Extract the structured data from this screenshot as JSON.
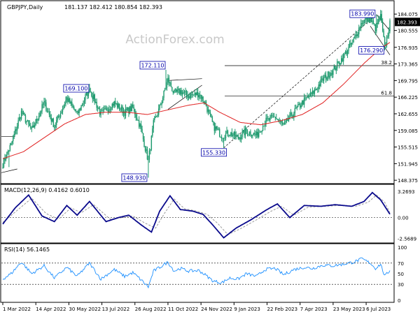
{
  "chart_data": [
    {
      "type": "candlestick",
      "symbol_label": "GBPJPY,Daily",
      "ohlc_label": "181.137 182.412 180.854 182.393",
      "watermark": "ActionForex.com",
      "ylim": [
        148.4,
        185.9
      ],
      "y_ticks": [
        "184.075",
        "180.555",
        "176.935",
        "173.365",
        "169.795",
        "166.225",
        "162.655",
        "159.085",
        "155.515",
        "151.945",
        "148.375"
      ],
      "y_tick_values": [
        184.075,
        180.555,
        176.935,
        173.365,
        169.795,
        166.225,
        162.655,
        159.085,
        155.515,
        151.945,
        148.375
      ],
      "current_price": "182.393",
      "current_price_value": 182.393,
      "x_ticks": [
        "1 Mar 2022",
        "14 Apr 2022",
        "30 May 2022",
        "13 Jul 2022",
        "26 Aug 2022",
        "11 Oct 2022",
        "24 Nov 2022",
        "9 Jan 2023",
        "22 Feb 2023",
        "7 Apr 2023",
        "23 May 2023",
        "6 Jul 2023"
      ],
      "x_tick_index": [
        0,
        32,
        64,
        96,
        128,
        160,
        192,
        224,
        256,
        288,
        320,
        352
      ],
      "anchors": [
        {
          "i": 0,
          "p": 152.0
        },
        {
          "i": 8,
          "p": 156.0
        },
        {
          "i": 18,
          "p": 163.0
        },
        {
          "i": 28,
          "p": 159.0
        },
        {
          "i": 40,
          "p": 165.0
        },
        {
          "i": 50,
          "p": 160.0
        },
        {
          "i": 62,
          "p": 166.0
        },
        {
          "i": 72,
          "p": 162.5
        },
        {
          "i": 84,
          "p": 168.0
        },
        {
          "i": 95,
          "p": 162.5
        },
        {
          "i": 108,
          "p": 165.0
        },
        {
          "i": 118,
          "p": 163.0
        },
        {
          "i": 126,
          "p": 164.0
        },
        {
          "i": 133,
          "p": 160.0
        },
        {
          "i": 141,
          "p": 152.5
        },
        {
          "i": 146,
          "p": 160.5
        },
        {
          "i": 152,
          "p": 164.0
        },
        {
          "i": 160,
          "p": 170.0
        },
        {
          "i": 166,
          "p": 167.0
        },
        {
          "i": 172,
          "p": 167.5
        },
        {
          "i": 180,
          "p": 166.5
        },
        {
          "i": 190,
          "p": 167.0
        },
        {
          "i": 196,
          "p": 165.0
        },
        {
          "i": 204,
          "p": 160.0
        },
        {
          "i": 212,
          "p": 158.0
        },
        {
          "i": 220,
          "p": 158.5
        },
        {
          "i": 228,
          "p": 157.5
        },
        {
          "i": 236,
          "p": 159.0
        },
        {
          "i": 246,
          "p": 158.0
        },
        {
          "i": 254,
          "p": 161.0
        },
        {
          "i": 264,
          "p": 162.0
        },
        {
          "i": 272,
          "p": 160.0
        },
        {
          "i": 282,
          "p": 163.0
        },
        {
          "i": 292,
          "p": 165.5
        },
        {
          "i": 300,
          "p": 167.0
        },
        {
          "i": 310,
          "p": 170.0
        },
        {
          "i": 320,
          "p": 172.0
        },
        {
          "i": 330,
          "p": 175.0
        },
        {
          "i": 340,
          "p": 178.5
        },
        {
          "i": 348,
          "p": 182.5
        },
        {
          "i": 356,
          "p": 183.0
        },
        {
          "i": 361,
          "p": 181.0
        },
        {
          "i": 366,
          "p": 183.5
        },
        {
          "i": 370,
          "p": 176.8
        },
        {
          "i": 375,
          "p": 182.0
        }
      ],
      "extremes": [
        {
          "i": 6,
          "p": 151.2
        },
        {
          "i": 84,
          "p": 169.1
        },
        {
          "i": 141,
          "p": 148.93
        },
        {
          "i": 158,
          "p": 172.11
        },
        {
          "i": 214,
          "p": 155.33
        },
        {
          "i": 362,
          "p": 183.99
        },
        {
          "i": 370,
          "p": 176.29
        }
      ],
      "ma_anchors": [
        {
          "i": 0,
          "p": 153.0
        },
        {
          "i": 20,
          "p": 154.5
        },
        {
          "i": 40,
          "p": 157.5
        },
        {
          "i": 60,
          "p": 160.5
        },
        {
          "i": 80,
          "p": 162.5
        },
        {
          "i": 100,
          "p": 163.0
        },
        {
          "i": 120,
          "p": 163.0
        },
        {
          "i": 140,
          "p": 162.5
        },
        {
          "i": 160,
          "p": 163.5
        },
        {
          "i": 180,
          "p": 164.5
        },
        {
          "i": 195,
          "p": 165.0
        },
        {
          "i": 210,
          "p": 163.0
        },
        {
          "i": 230,
          "p": 160.8
        },
        {
          "i": 250,
          "p": 160.3
        },
        {
          "i": 270,
          "p": 161.2
        },
        {
          "i": 290,
          "p": 162.5
        },
        {
          "i": 310,
          "p": 165.0
        },
        {
          "i": 330,
          "p": 169.0
        },
        {
          "i": 350,
          "p": 173.5
        },
        {
          "i": 365,
          "p": 176.5
        },
        {
          "i": 375,
          "p": 178.0
        }
      ],
      "price_labels": [
        {
          "text": "183.990",
          "i": 362,
          "p": 183.99
        },
        {
          "text": "176.290",
          "i": 370,
          "p": 176.29
        },
        {
          "text": "172.110",
          "i": 158,
          "p": 172.11
        },
        {
          "text": "169.100",
          "i": 84,
          "p": 169.1
        },
        {
          "text": "155.330",
          "i": 214,
          "p": 155.33
        },
        {
          "text": "148.930",
          "i": 141,
          "p": 148.93
        }
      ],
      "fibonacci": [
        {
          "label": "38.2",
          "price": 173.0,
          "from_i": 215
        },
        {
          "label": "61.8",
          "price": 166.5,
          "from_i": 215
        }
      ]
    },
    {
      "type": "line",
      "title": "MACD(12,26,9) 0.4162 0.6010",
      "ylim": [
        -2.8,
        3.6
      ],
      "y_ticks": [
        "3.2693",
        "0.00",
        "-2.5689"
      ],
      "y_tick_values": [
        3.2693,
        0.0,
        -2.5689
      ],
      "series": [
        {
          "role": "macd",
          "color": "#0a0a8c",
          "anchors": [
            {
              "i": 0,
              "v": -0.8
            },
            {
              "i": 12,
              "v": 1.2
            },
            {
              "i": 25,
              "v": 2.8
            },
            {
              "i": 38,
              "v": 0.2
            },
            {
              "i": 50,
              "v": -0.5
            },
            {
              "i": 62,
              "v": 1.5
            },
            {
              "i": 72,
              "v": 0.3
            },
            {
              "i": 84,
              "v": 2.0
            },
            {
              "i": 100,
              "v": -0.5
            },
            {
              "i": 112,
              "v": 0.0
            },
            {
              "i": 122,
              "v": 0.3
            },
            {
              "i": 134,
              "v": -0.9
            },
            {
              "i": 144,
              "v": -1.8
            },
            {
              "i": 152,
              "v": 0.8
            },
            {
              "i": 162,
              "v": 2.7
            },
            {
              "i": 172,
              "v": 1.0
            },
            {
              "i": 184,
              "v": 0.8
            },
            {
              "i": 194,
              "v": 0.4
            },
            {
              "i": 204,
              "v": -1.0
            },
            {
              "i": 214,
              "v": -2.5
            },
            {
              "i": 226,
              "v": -1.3
            },
            {
              "i": 240,
              "v": -0.3
            },
            {
              "i": 256,
              "v": 1.0
            },
            {
              "i": 266,
              "v": 1.7
            },
            {
              "i": 278,
              "v": 0.0
            },
            {
              "i": 292,
              "v": 1.5
            },
            {
              "i": 308,
              "v": 1.4
            },
            {
              "i": 322,
              "v": 1.6
            },
            {
              "i": 338,
              "v": 1.4
            },
            {
              "i": 350,
              "v": 2.0
            },
            {
              "i": 358,
              "v": 3.1
            },
            {
              "i": 366,
              "v": 2.2
            },
            {
              "i": 375,
              "v": 0.42
            }
          ]
        },
        {
          "role": "signal",
          "color": "#9a9a9a",
          "anchors": [
            {
              "i": 0,
              "v": -0.6
            },
            {
              "i": 14,
              "v": 0.9
            },
            {
              "i": 28,
              "v": 2.4
            },
            {
              "i": 42,
              "v": 0.5
            },
            {
              "i": 54,
              "v": -0.2
            },
            {
              "i": 66,
              "v": 1.2
            },
            {
              "i": 76,
              "v": 0.6
            },
            {
              "i": 88,
              "v": 1.6
            },
            {
              "i": 104,
              "v": -0.2
            },
            {
              "i": 116,
              "v": 0.0
            },
            {
              "i": 126,
              "v": 0.2
            },
            {
              "i": 138,
              "v": -0.7
            },
            {
              "i": 148,
              "v": -1.3
            },
            {
              "i": 156,
              "v": 0.4
            },
            {
              "i": 166,
              "v": 2.3
            },
            {
              "i": 176,
              "v": 1.1
            },
            {
              "i": 188,
              "v": 0.8
            },
            {
              "i": 198,
              "v": 0.4
            },
            {
              "i": 208,
              "v": -0.7
            },
            {
              "i": 218,
              "v": -2.1
            },
            {
              "i": 230,
              "v": -1.4
            },
            {
              "i": 244,
              "v": -0.4
            },
            {
              "i": 260,
              "v": 0.8
            },
            {
              "i": 270,
              "v": 1.4
            },
            {
              "i": 282,
              "v": 0.3
            },
            {
              "i": 296,
              "v": 1.3
            },
            {
              "i": 312,
              "v": 1.4
            },
            {
              "i": 326,
              "v": 1.5
            },
            {
              "i": 342,
              "v": 1.4
            },
            {
              "i": 354,
              "v": 1.9
            },
            {
              "i": 362,
              "v": 2.8
            },
            {
              "i": 370,
              "v": 1.9
            },
            {
              "i": 375,
              "v": 0.6
            }
          ]
        }
      ]
    },
    {
      "type": "line",
      "title": "RSI(14) 56.1465",
      "ylim": [
        0,
        100
      ],
      "y_ticks": [
        "100",
        "70",
        "50",
        "30",
        "0"
      ],
      "y_tick_values": [
        100,
        70,
        50,
        30,
        0
      ],
      "levels": [
        70,
        30
      ],
      "series": [
        {
          "role": "rsi",
          "color": "#1e90ff",
          "anchors": [
            {
              "i": 0,
              "v": 40
            },
            {
              "i": 8,
              "v": 50
            },
            {
              "i": 18,
              "v": 72
            },
            {
              "i": 28,
              "v": 50
            },
            {
              "i": 40,
              "v": 65
            },
            {
              "i": 50,
              "v": 42
            },
            {
              "i": 62,
              "v": 62
            },
            {
              "i": 72,
              "v": 45
            },
            {
              "i": 84,
              "v": 70
            },
            {
              "i": 95,
              "v": 40
            },
            {
              "i": 108,
              "v": 58
            },
            {
              "i": 118,
              "v": 45
            },
            {
              "i": 126,
              "v": 52
            },
            {
              "i": 133,
              "v": 40
            },
            {
              "i": 141,
              "v": 25
            },
            {
              "i": 146,
              "v": 55
            },
            {
              "i": 152,
              "v": 62
            },
            {
              "i": 160,
              "v": 72
            },
            {
              "i": 166,
              "v": 55
            },
            {
              "i": 172,
              "v": 60
            },
            {
              "i": 180,
              "v": 55
            },
            {
              "i": 190,
              "v": 56
            },
            {
              "i": 196,
              "v": 48
            },
            {
              "i": 204,
              "v": 36
            },
            {
              "i": 212,
              "v": 33
            },
            {
              "i": 220,
              "v": 42
            },
            {
              "i": 228,
              "v": 40
            },
            {
              "i": 236,
              "v": 50
            },
            {
              "i": 246,
              "v": 45
            },
            {
              "i": 254,
              "v": 58
            },
            {
              "i": 264,
              "v": 60
            },
            {
              "i": 272,
              "v": 48
            },
            {
              "i": 282,
              "v": 58
            },
            {
              "i": 292,
              "v": 62
            },
            {
              "i": 300,
              "v": 60
            },
            {
              "i": 310,
              "v": 66
            },
            {
              "i": 320,
              "v": 65
            },
            {
              "i": 330,
              "v": 68
            },
            {
              "i": 340,
              "v": 72
            },
            {
              "i": 348,
              "v": 78
            },
            {
              "i": 356,
              "v": 70
            },
            {
              "i": 361,
              "v": 60
            },
            {
              "i": 366,
              "v": 68
            },
            {
              "i": 370,
              "v": 45
            },
            {
              "i": 375,
              "v": 56.1
            }
          ]
        }
      ]
    }
  ]
}
